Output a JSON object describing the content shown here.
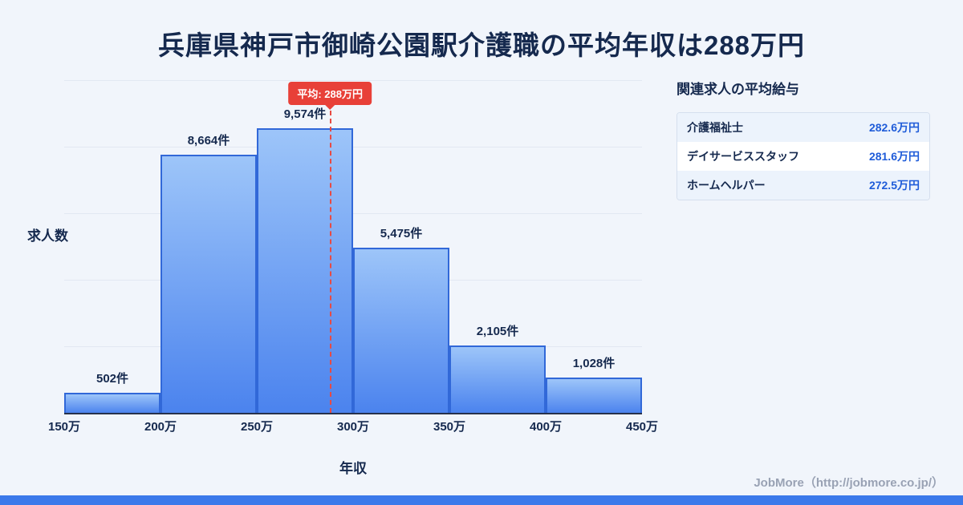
{
  "title": "兵庫県神戸市御崎公園駅介護職の平均年収は288万円",
  "footer": "JobMore（http://jobmore.co.jp/）",
  "chart_data": {
    "type": "bar",
    "title": "兵庫県神戸市御崎公園駅介護職の平均年収は288万円",
    "xlabel": "年収",
    "ylabel": "求人数",
    "x_tick_labels": [
      "150万",
      "200万",
      "250万",
      "300万",
      "350万",
      "400万",
      "450万"
    ],
    "x_range": [
      150,
      450
    ],
    "bin_width": 50,
    "values": [
      502,
      8664,
      9574,
      5475,
      2105,
      1028
    ],
    "bar_labels": [
      "502件",
      "8,664件",
      "9,574件",
      "5,475件",
      "2,105件",
      "1,028件"
    ],
    "average_line": {
      "x": 288,
      "label": "平均: 288万円"
    },
    "grid": true,
    "legend": "none"
  },
  "related": {
    "heading": "関連求人の平均給与",
    "rows": [
      {
        "job": "介護福祉士",
        "salary": "282.6万円"
      },
      {
        "job": "デイサービススタッフ",
        "salary": "281.6万円"
      },
      {
        "job": "ホームヘルパー",
        "salary": "272.5万円"
      }
    ]
  },
  "colors": {
    "background": "#f1f5fb",
    "title_navy": "#15294e",
    "bar_gradient_top": "#9dc5f9",
    "bar_gradient_bottom": "#4b83ee",
    "bar_border": "#3168d8",
    "average_red": "#e84038",
    "salary_blue": "#1f5cd9",
    "footer_gray": "#99a2b4",
    "bottom_strip_blue": "#3b79ea"
  }
}
